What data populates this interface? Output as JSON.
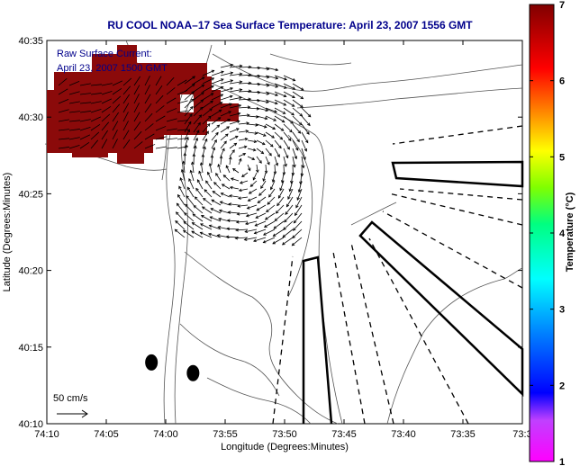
{
  "chart_data": {
    "type": "map",
    "title": "RU COOL  NOAA–17  Sea Surface Temperature:  April 23, 2007 1556 GMT",
    "xlabel": "Longitude (Degrees:Minutes)",
    "ylabel": "Latitude (Degrees:Minutes)",
    "x_ticks": [
      "74:10",
      "74:05",
      "74:00",
      "73:55",
      "73:50",
      "73:45",
      "73:40",
      "73:35",
      "73:3"
    ],
    "y_ticks": [
      "40:35",
      "40:30",
      "40:25",
      "40:20",
      "40:15",
      "40:10"
    ],
    "xlim_minutes_west": [
      -30,
      10
    ],
    "ylim_latitude": [
      40.1667,
      40.5833
    ],
    "overlay": {
      "line1": "Raw Surface Current:",
      "line2": "April 23, 2007 1500 GMT"
    },
    "scale_label": "50 cm/s",
    "colorbar": {
      "label": "Temperature (°C)",
      "ticks": [
        1,
        2,
        3,
        4,
        5,
        6,
        7
      ],
      "range": [
        1,
        7
      ],
      "colormap": "jet-with-magenta-low"
    },
    "sst_patch_color": "#8b0a0a",
    "land_outline_color": "#555555",
    "markers": [
      {
        "lon_min": -1.2,
        "lat_min": 14.0
      },
      {
        "lon_min": 2.3,
        "lat_min": 13.3
      }
    ],
    "current_field": {
      "lon_range_min": [
        -27,
        -1
      ],
      "lat_range_min": [
        20,
        30
      ],
      "description_dir": "clockwise-eddy"
    }
  }
}
